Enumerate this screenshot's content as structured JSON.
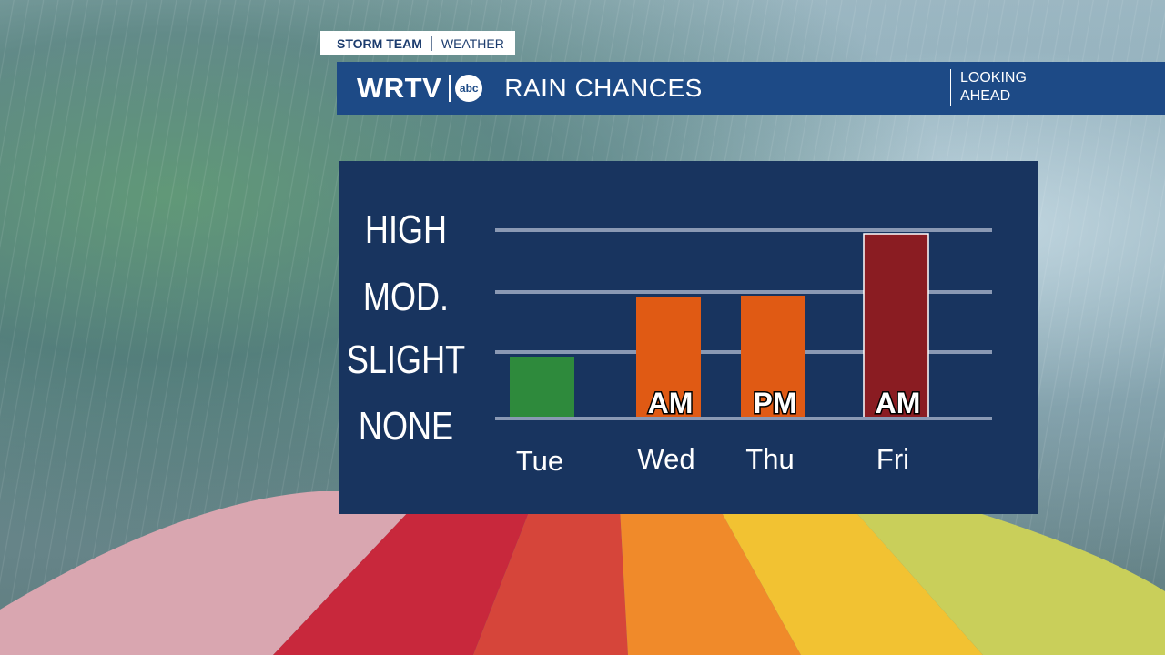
{
  "tag": {
    "team": "STORM TEAM",
    "section": "WEATHER"
  },
  "header": {
    "brand": "WRTV",
    "network": "abc",
    "title": "RAIN CHANCES",
    "side_line1": "LOOKING",
    "side_line2": "AHEAD"
  },
  "chart_data": {
    "type": "bar",
    "categories": [
      "Tue",
      "Wed",
      "Thu",
      "Fri"
    ],
    "y_levels": [
      "NONE",
      "SLIGHT",
      "MOD.",
      "HIGH"
    ],
    "values": [
      1,
      2,
      2,
      3
    ],
    "bar_labels": [
      "",
      "AM",
      "PM",
      "AM"
    ],
    "colors": [
      "#2e8a3c",
      "#e05a14",
      "#e05a14",
      "#8a1c22"
    ],
    "ylim": [
      0,
      3
    ],
    "grid": true
  }
}
